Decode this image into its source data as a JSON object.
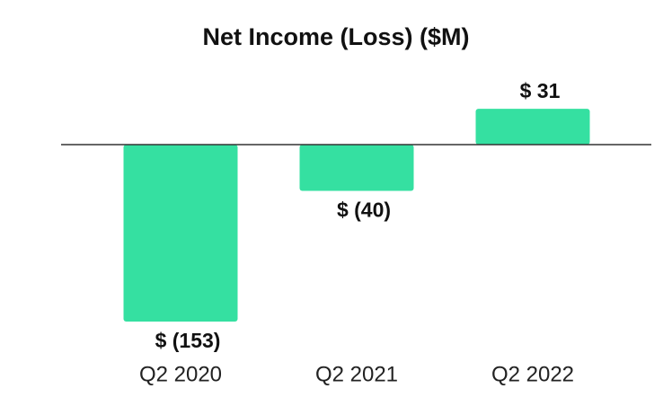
{
  "chart_data": {
    "type": "bar",
    "title": "Net Income (Loss) ($M)",
    "categories": [
      "Q2 2020",
      "Q2 2021",
      "Q2 2022"
    ],
    "values": [
      -153,
      -40,
      31
    ],
    "value_labels": [
      "$ (153)",
      "$ (40)",
      "$ 31"
    ],
    "color": "#35e0a1"
  }
}
